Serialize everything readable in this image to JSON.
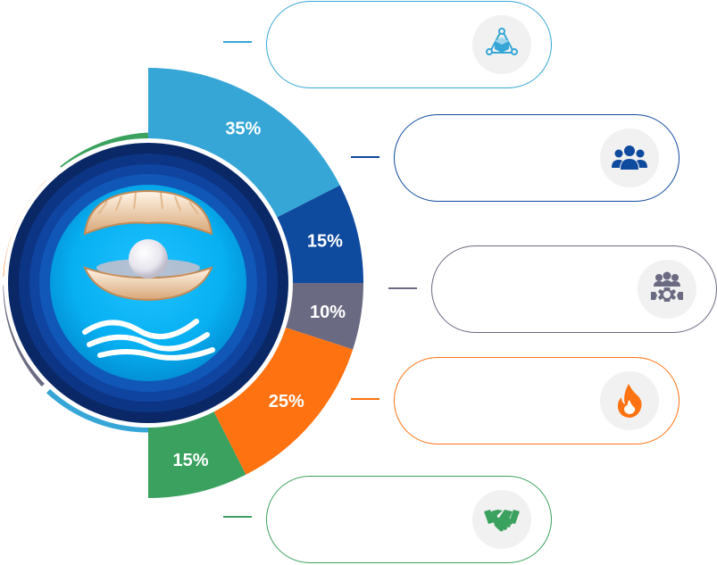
{
  "chart_data": {
    "type": "pie",
    "title": "",
    "categories": [
      "",
      "",
      "",
      "",
      ""
    ],
    "values": [
      35,
      15,
      10,
      25,
      15
    ],
    "labels": [
      "35%",
      "15%",
      "10%",
      "25%",
      "15%"
    ],
    "colors": [
      "#35a6d6",
      "#0e4a9e",
      "#6a6a82",
      "#ff7211",
      "#3aa15e"
    ],
    "style": "right half-donut, segments ordered top to bottom"
  },
  "cards": [
    {
      "icon": "network-cube-icon",
      "color": "#35a6d6",
      "text": ""
    },
    {
      "icon": "team-icon",
      "color": "#0e4a9e",
      "text": ""
    },
    {
      "icon": "team-gear-icon",
      "color": "#6a6a82",
      "text": ""
    },
    {
      "icon": "fire-icon",
      "color": "#ff7211",
      "text": ""
    },
    {
      "icon": "handshake-icon",
      "color": "#3aa15e",
      "text": ""
    }
  ],
  "center_graphic": {
    "icon": "pearl-shell-icon",
    "waves": "waves-icon"
  }
}
